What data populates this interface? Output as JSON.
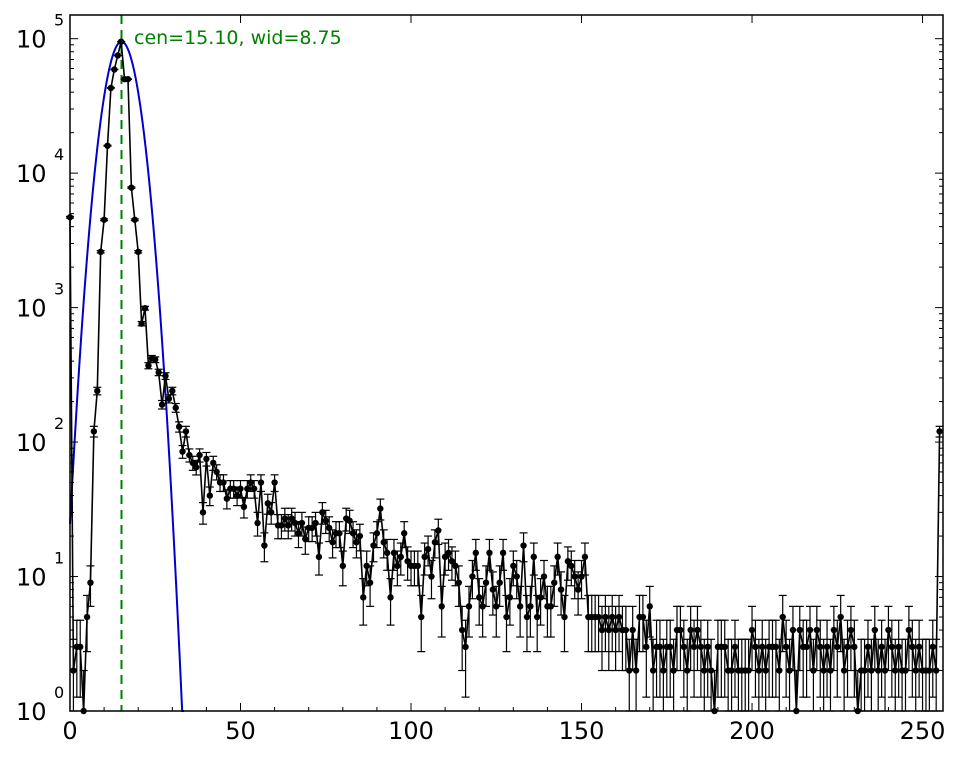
{
  "chart_data": {
    "type": "scatter",
    "title": "",
    "xlabel": "",
    "ylabel": "",
    "xlim": [
      0,
      256
    ],
    "ylim": [
      1,
      150000
    ],
    "yscale": "log",
    "grid": false,
    "x_ticks": [
      0,
      50,
      100,
      150,
      200,
      250
    ],
    "x_tick_labels": [
      "0",
      "50",
      "100",
      "150",
      "200",
      "250"
    ],
    "y_ticks": [
      1,
      10,
      100,
      1000,
      10000,
      100000
    ],
    "y_tick_labels": [
      {
        "base": "10",
        "exp": "0"
      },
      {
        "base": "10",
        "exp": "1"
      },
      {
        "base": "10",
        "exp": "2"
      },
      {
        "base": "10",
        "exp": "3"
      },
      {
        "base": "10",
        "exp": "4"
      },
      {
        "base": "10",
        "exp": "5"
      }
    ],
    "annotation": "cen=15.10, wid=8.75",
    "fit_center": 15.1,
    "fit_width": 8.75,
    "fit_amplitude": 95000,
    "colors": {
      "data": "#000000",
      "fit": "#0000cc",
      "center_line": "#008000"
    },
    "series": [
      {
        "style": "data-with-errorbars",
        "x": [
          0,
          1,
          2,
          3,
          4,
          5,
          6,
          7,
          8,
          9,
          10,
          11,
          12,
          13,
          14,
          15,
          16,
          17,
          18,
          19,
          20,
          21,
          22,
          23,
          24,
          25,
          26,
          27,
          28,
          29,
          30,
          31,
          32,
          33,
          34,
          35,
          36,
          37,
          38,
          39,
          40,
          41,
          42,
          43,
          44,
          45,
          46,
          47,
          48,
          49,
          50,
          51,
          52,
          53,
          54,
          55,
          56,
          57,
          58,
          59,
          60,
          61,
          62,
          63,
          64,
          65,
          66,
          67,
          68,
          69,
          70,
          71,
          72,
          73,
          74,
          75,
          76,
          77,
          78,
          79,
          80,
          81,
          82,
          83,
          84,
          85,
          86,
          87,
          88,
          89,
          90,
          91,
          92,
          93,
          94,
          95,
          96,
          97,
          98,
          99,
          100,
          101,
          102,
          103,
          104,
          105,
          106,
          107,
          108,
          109,
          110,
          111,
          112,
          113,
          114,
          115,
          116,
          117,
          118,
          119,
          120,
          121,
          122,
          123,
          124,
          125,
          126,
          127,
          128,
          129,
          130,
          131,
          132,
          133,
          134,
          135,
          136,
          137,
          138,
          139,
          140,
          141,
          142,
          143,
          144,
          145,
          146,
          147,
          148,
          149,
          150,
          151,
          152,
          153,
          154,
          155,
          156,
          157,
          158,
          159,
          160,
          161,
          162,
          163,
          164,
          165,
          166,
          167,
          168,
          169,
          170,
          171,
          172,
          173,
          174,
          175,
          176,
          177,
          178,
          179,
          180,
          181,
          182,
          183,
          184,
          185,
          186,
          187,
          188,
          189,
          190,
          191,
          192,
          193,
          194,
          195,
          196,
          197,
          198,
          199,
          200,
          201,
          202,
          203,
          204,
          205,
          206,
          207,
          208,
          209,
          210,
          211,
          212,
          213,
          214,
          215,
          216,
          217,
          218,
          219,
          220,
          221,
          222,
          223,
          224,
          225,
          226,
          227,
          228,
          229,
          230,
          231,
          232,
          233,
          234,
          235,
          236,
          237,
          238,
          239,
          240,
          241,
          242,
          243,
          244,
          245,
          246,
          247,
          248,
          249,
          250,
          251,
          252,
          253,
          254,
          255
        ],
        "y": [
          4700,
          2,
          3,
          3,
          1,
          5,
          9,
          120,
          240,
          2600,
          4500,
          16000,
          43000,
          59000,
          75000,
          95000,
          50000,
          50000,
          7800,
          4500,
          2600,
          760,
          990,
          370,
          420,
          410,
          330,
          190,
          310,
          210,
          240,
          180,
          130,
          85,
          120,
          80,
          70,
          65,
          80,
          30,
          75,
          40,
          70,
          60,
          50,
          50,
          38,
          45,
          45,
          40,
          45,
          33,
          45,
          50,
          45,
          25,
          50,
          17,
          35,
          30,
          50,
          24,
          24,
          27,
          24,
          27,
          25,
          21,
          25,
          19,
          23,
          23,
          25,
          14,
          30,
          26,
          23,
          18,
          21,
          21,
          12,
          27,
          26,
          21,
          18,
          20,
          7,
          12,
          9,
          17,
          21,
          32,
          18,
          15,
          7,
          15,
          12,
          14,
          21,
          13,
          12,
          12,
          12,
          5,
          14,
          16,
          10,
          18,
          22,
          6,
          14,
          15,
          13,
          12,
          9,
          4,
          3,
          6,
          10,
          15,
          7,
          6,
          9,
          15,
          8,
          6,
          9,
          15,
          5,
          7,
          12,
          10,
          6,
          17,
          5,
          6,
          14,
          5,
          7,
          10,
          6,
          6,
          9,
          14,
          8,
          5,
          13,
          12,
          10,
          8,
          10,
          14,
          5,
          5,
          5,
          5,
          4,
          5,
          4,
          5,
          4,
          5,
          4,
          4,
          2,
          4,
          2,
          5,
          5,
          3,
          6,
          2,
          3,
          3,
          2,
          3,
          3,
          2,
          4,
          4,
          3,
          2,
          4,
          3,
          4,
          3,
          2,
          3,
          2,
          1,
          3,
          3,
          3,
          2,
          2,
          3,
          2,
          2,
          2,
          2,
          4,
          3,
          2,
          3,
          2,
          3,
          3,
          3,
          2,
          5,
          3,
          2,
          4,
          1,
          4,
          3,
          3,
          4,
          2,
          4,
          3,
          2,
          3,
          2,
          4,
          3,
          5,
          2,
          3,
          4,
          3,
          1,
          2,
          2,
          3,
          2,
          4,
          2,
          3,
          2,
          4,
          3,
          2,
          3,
          2,
          2,
          4,
          3,
          2,
          3,
          2,
          2,
          2,
          3,
          2,
          120
        ]
      },
      {
        "style": "fit-curve"
      }
    ]
  }
}
